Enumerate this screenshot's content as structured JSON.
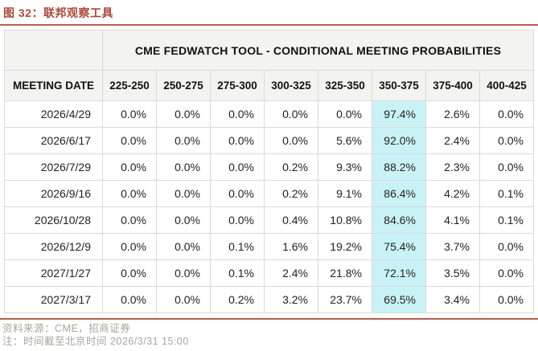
{
  "figure": {
    "title": "图 32：联邦观察工具"
  },
  "chart_data": {
    "type": "table",
    "title": "CME FEDWATCH TOOL - CONDITIONAL MEETING PROBABILITIES",
    "figure_label": "图 32：联邦观察工具",
    "columns": [
      "MEETING DATE",
      "225-250",
      "250-275",
      "275-300",
      "300-325",
      "325-350",
      "350-375",
      "375-400",
      "400-425"
    ],
    "rows": [
      [
        "2026/4/29",
        "0.0%",
        "0.0%",
        "0.0%",
        "0.0%",
        "0.0%",
        "97.4%",
        "2.6%",
        "0.0%"
      ],
      [
        "2026/6/17",
        "0.0%",
        "0.0%",
        "0.0%",
        "0.0%",
        "5.6%",
        "92.0%",
        "2.4%",
        "0.0%"
      ],
      [
        "2026/7/29",
        "0.0%",
        "0.0%",
        "0.0%",
        "0.2%",
        "9.3%",
        "88.2%",
        "2.3%",
        "0.0%"
      ],
      [
        "2026/9/16",
        "0.0%",
        "0.0%",
        "0.0%",
        "0.2%",
        "9.1%",
        "86.4%",
        "4.2%",
        "0.1%"
      ],
      [
        "2026/10/28",
        "0.0%",
        "0.0%",
        "0.0%",
        "0.4%",
        "10.8%",
        "84.6%",
        "4.1%",
        "0.1%"
      ],
      [
        "2026/12/9",
        "0.0%",
        "0.0%",
        "0.1%",
        "1.6%",
        "19.2%",
        "75.4%",
        "3.7%",
        "0.0%"
      ],
      [
        "2027/1/27",
        "0.0%",
        "0.0%",
        "0.1%",
        "2.4%",
        "21.8%",
        "72.1%",
        "3.5%",
        "0.0%"
      ],
      [
        "2027/3/17",
        "0.0%",
        "0.0%",
        "0.2%",
        "3.2%",
        "23.7%",
        "69.5%",
        "3.4%",
        "0.0%"
      ]
    ],
    "highlight_column": "350-375",
    "legend_position": "none",
    "grid": true
  },
  "footer": {
    "source": "资料来源：CME，招商证券",
    "note": "注：时间截至北京时间 2026/3/31 15:00"
  },
  "colors": {
    "accent_red": "#a8493c",
    "rule_red": "#b4604f",
    "highlight_cyan": "#c9f2f6",
    "header_gray": "#f3f3f2",
    "border_gray": "#d9d9d9",
    "footer_gray": "#aaa49d"
  }
}
